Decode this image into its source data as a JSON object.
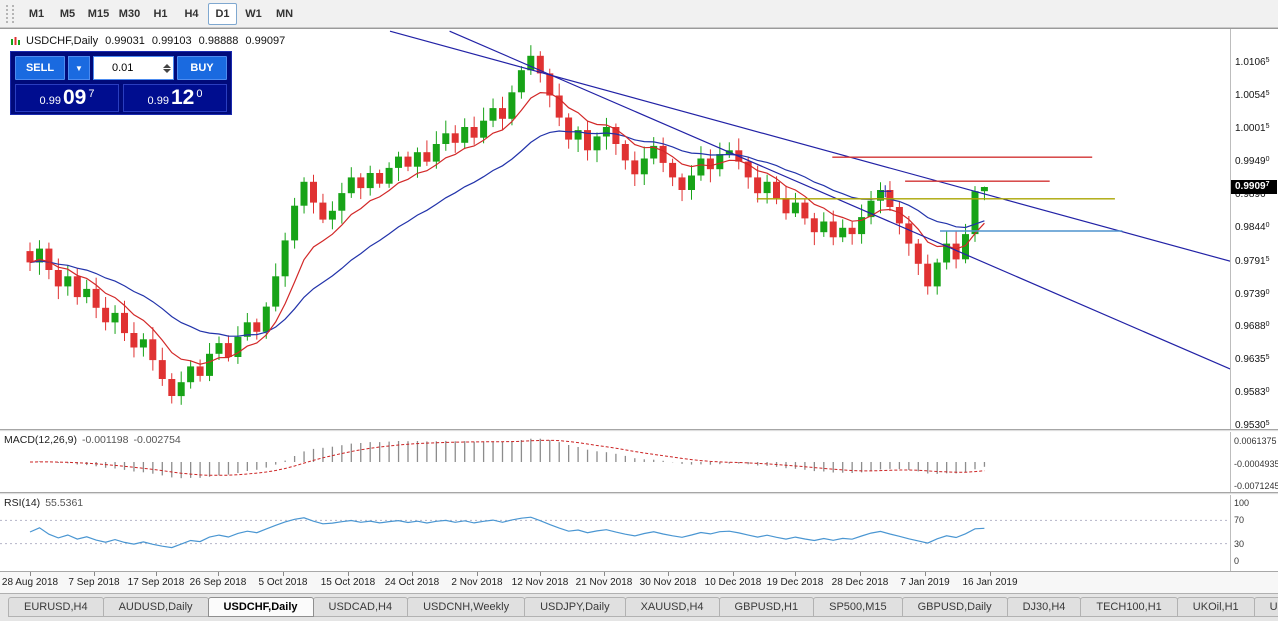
{
  "toolbar": {
    "timeframes": [
      {
        "label": "M1",
        "active": false
      },
      {
        "label": "M5",
        "active": false
      },
      {
        "label": "M15",
        "active": false
      },
      {
        "label": "M30",
        "active": false
      },
      {
        "label": "H1",
        "active": false
      },
      {
        "label": "H4",
        "active": false
      },
      {
        "label": "D1",
        "active": true
      },
      {
        "label": "W1",
        "active": false
      },
      {
        "label": "MN",
        "active": false
      }
    ]
  },
  "window": {
    "symbol": "USDCHF,Daily",
    "quote": {
      "open": "0.99031",
      "high": "0.99103",
      "low": "0.98888",
      "close": "0.99097"
    },
    "one_click": {
      "sell_label": "SELL",
      "buy_label": "BUY",
      "volume": "0.01",
      "sell_price": {
        "prefix": "0.99",
        "big": "09",
        "sup": "7"
      },
      "buy_price": {
        "prefix": "0.99",
        "big": "12",
        "sup": "0"
      }
    }
  },
  "price_axis": {
    "labels": [
      "1.01065",
      "1.00545",
      "1.00015",
      "0.99490",
      "0.98965",
      "0.98440",
      "0.97915",
      "0.97390",
      "0.96880",
      "0.96355",
      "0.95830",
      "0.95305"
    ],
    "current": "0.99097"
  },
  "macd": {
    "name": "MACD(12,26,9)",
    "main_value": "-0.001198",
    "signal_value": "-0.002754",
    "axis_labels": [
      "0.0061375",
      "-0.0004935",
      "-0.0071245"
    ],
    "axis_values": [
      0.0061375,
      -0.0004935,
      -0.0071245
    ]
  },
  "rsi": {
    "name": "RSI(14)",
    "value": "55.5361",
    "axis_labels": [
      "100",
      "70",
      "30",
      "0"
    ],
    "axis_values": [
      100,
      70,
      30,
      0
    ],
    "levels": [
      70,
      30
    ]
  },
  "date_axis": {
    "labels": [
      "28 Aug 2018",
      "7 Sep 2018",
      "17 Sep 2018",
      "26 Sep 2018",
      "5 Oct 2018",
      "15 Oct 2018",
      "24 Oct 2018",
      "2 Nov 2018",
      "12 Nov 2018",
      "21 Nov 2018",
      "30 Nov 2018",
      "10 Dec 2018",
      "19 Dec 2018",
      "28 Dec 2018",
      "7 Jan 2019",
      "16 Jan 2019"
    ]
  },
  "tabs": [
    {
      "label": "EURUSD,H4",
      "active": false
    },
    {
      "label": "AUDUSD,Daily",
      "active": false
    },
    {
      "label": "USDCHF,Daily",
      "active": true
    },
    {
      "label": "USDCAD,H4",
      "active": false
    },
    {
      "label": "USDCNH,Weekly",
      "active": false
    },
    {
      "label": "USDJPY,Daily",
      "active": false
    },
    {
      "label": "XAUUSD,H4",
      "active": false
    },
    {
      "label": "GBPUSD,H1",
      "active": false
    },
    {
      "label": "SP500,M15",
      "active": false
    },
    {
      "label": "GBPUSD,Daily",
      "active": false
    },
    {
      "label": "DJ30,H4",
      "active": false
    },
    {
      "label": "TECH100,H1",
      "active": false
    },
    {
      "label": "UKOil,H1",
      "active": false
    },
    {
      "label": "U",
      "active": false
    }
  ],
  "colors": {
    "up": "#17a317",
    "down": "#e03232",
    "ma_fast": "#d22828",
    "ma_slow": "#2233aa",
    "trend": "#2222a6",
    "macd_hist": "#8c8c8c",
    "macd_signal": "#cc2424",
    "rsi": "#4a96d2",
    "hline_red": "#d23333",
    "hline_olive": "#a9a400",
    "hline_blue": "#4f94cd",
    "panel_navy": "#000a7a",
    "button_blue": "#1a6ae0",
    "badge_bg": "#000000"
  },
  "chart_data": {
    "type": "candlestick",
    "symbol": "USDCHF",
    "timeframe": "Daily",
    "visible_range": {
      "first_date": "28 Aug 2018",
      "last_date": "16 Jan 2019",
      "price_top": 1.01065,
      "price_bottom": 0.95305
    },
    "closes": [
      0.979,
      0.9812,
      0.9778,
      0.9752,
      0.9768,
      0.9735,
      0.9748,
      0.9718,
      0.9695,
      0.971,
      0.9678,
      0.9655,
      0.9668,
      0.9635,
      0.9605,
      0.9578,
      0.96,
      0.9625,
      0.961,
      0.9645,
      0.9662,
      0.964,
      0.9672,
      0.9695,
      0.968,
      0.972,
      0.9768,
      0.9825,
      0.988,
      0.9918,
      0.9885,
      0.9858,
      0.9872,
      0.99,
      0.9925,
      0.9908,
      0.9932,
      0.9915,
      0.994,
      0.9958,
      0.9942,
      0.9965,
      0.995,
      0.9978,
      0.9995,
      0.998,
      1.0005,
      0.9988,
      1.0015,
      1.0035,
      1.0018,
      1.006,
      1.0095,
      1.0118,
      1.009,
      1.0055,
      1.002,
      0.9985,
      1.0,
      0.9968,
      0.999,
      1.0005,
      0.9978,
      0.9952,
      0.993,
      0.9955,
      0.9975,
      0.9948,
      0.9925,
      0.9905,
      0.9928,
      0.9955,
      0.9938,
      0.9962,
      0.9968,
      0.995,
      0.9925,
      0.99,
      0.9918,
      0.9892,
      0.9868,
      0.9885,
      0.986,
      0.9838,
      0.9855,
      0.983,
      0.9845,
      0.9835,
      0.9862,
      0.9888,
      0.9905,
      0.9878,
      0.9852,
      0.982,
      0.9788,
      0.9752,
      0.979,
      0.982,
      0.9795,
      0.9835,
      0.9903,
      0.99097
    ],
    "last_candle": {
      "open": 0.99031,
      "high": 0.99103,
      "low": 0.98888,
      "close": 0.99097
    },
    "overlays": {
      "ma_fast_period": 8,
      "ma_slow_period": 21
    },
    "objects": {
      "channel_lines": [
        {
          "i1": 38.1,
          "p1": 1.0157,
          "i2": 127.0,
          "p2": 0.9792
        },
        {
          "i1": 44.4,
          "p1": 1.0157,
          "i2": 127.0,
          "p2": 0.9621
        }
      ],
      "hlines": [
        {
          "p": 0.9957,
          "i1": 84.9,
          "i2": 112.4,
          "color_key": "hline_red"
        },
        {
          "p": 0.9919,
          "i1": 92.6,
          "i2": 107.9,
          "color_key": "hline_red"
        },
        {
          "p": 0.9891,
          "i1": 76.9,
          "i2": 114.8,
          "color_key": "hline_olive"
        },
        {
          "p": 0.984,
          "i1": 96.3,
          "i2": 115.6,
          "color_key": "hline_blue"
        }
      ],
      "cross_marker": {
        "i": 90.5,
        "p": 0.9903
      }
    },
    "indicators": {
      "macd": {
        "fast": 12,
        "slow": 26,
        "signal": 9,
        "current": -0.001198,
        "current_signal": -0.002754
      },
      "rsi": {
        "period": 14,
        "current": 55.5361
      }
    }
  }
}
